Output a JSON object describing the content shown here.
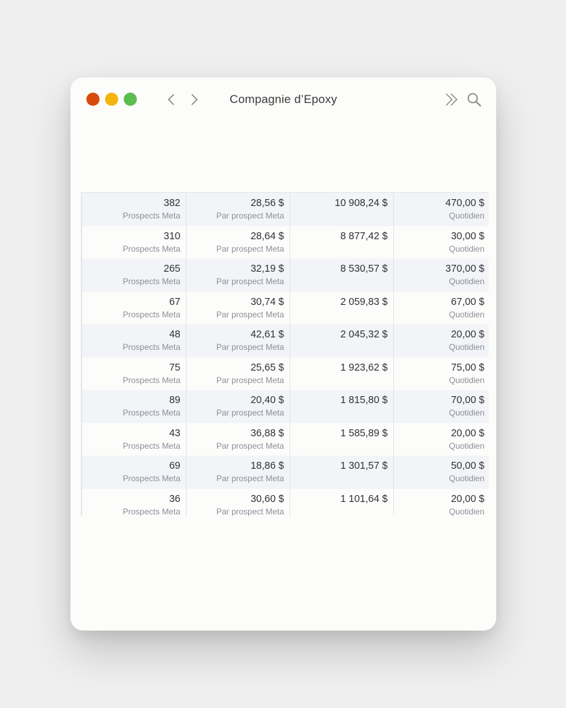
{
  "window": {
    "title": "Compagnie d’Epoxy"
  },
  "colors": {
    "close": "#d84a0c",
    "minimize": "#f4b50e",
    "maximize": "#5cbd4f"
  },
  "icons": {
    "back": "chevron-left-icon",
    "forward": "chevron-right-icon",
    "expand": "double-chevron-right-icon",
    "search": "search-icon"
  },
  "table": {
    "rows": [
      {
        "prospects": "382",
        "prospects_label": "Prospects Meta",
        "cost": "28,56 $",
        "cost_label": "Par prospect Meta",
        "spend": "10 908,24 $",
        "budget": "470,00 $",
        "budget_label": "Quotidien"
      },
      {
        "prospects": "310",
        "prospects_label": "Prospects Meta",
        "cost": "28,64 $",
        "cost_label": "Par prospect Meta",
        "spend": "8 877,42 $",
        "budget": "30,00 $",
        "budget_label": "Quotidien"
      },
      {
        "prospects": "265",
        "prospects_label": "Prospects Meta",
        "cost": "32,19 $",
        "cost_label": "Par prospect Meta",
        "spend": "8 530,57 $",
        "budget": "370,00 $",
        "budget_label": "Quotidien"
      },
      {
        "prospects": "67",
        "prospects_label": "Prospects Meta",
        "cost": "30,74 $",
        "cost_label": "Par prospect Meta",
        "spend": "2 059,83 $",
        "budget": "67,00 $",
        "budget_label": "Quotidien"
      },
      {
        "prospects": "48",
        "prospects_label": "Prospects Meta",
        "cost": "42,61 $",
        "cost_label": "Par prospect Meta",
        "spend": "2 045,32 $",
        "budget": "20,00 $",
        "budget_label": "Quotidien"
      },
      {
        "prospects": "75",
        "prospects_label": "Prospects Meta",
        "cost": "25,65 $",
        "cost_label": "Par prospect Meta",
        "spend": "1 923,62 $",
        "budget": "75,00 $",
        "budget_label": "Quotidien"
      },
      {
        "prospects": "89",
        "prospects_label": "Prospects Meta",
        "cost": "20,40 $",
        "cost_label": "Par prospect Meta",
        "spend": "1 815,80 $",
        "budget": "70,00 $",
        "budget_label": "Quotidien"
      },
      {
        "prospects": "43",
        "prospects_label": "Prospects Meta",
        "cost": "36,88 $",
        "cost_label": "Par prospect Meta",
        "spend": "1 585,89 $",
        "budget": "20,00 $",
        "budget_label": "Quotidien"
      },
      {
        "prospects": "69",
        "prospects_label": "Prospects Meta",
        "cost": "18,86 $",
        "cost_label": "Par prospect Meta",
        "spend": "1 301,57 $",
        "budget": "50,00 $",
        "budget_label": "Quotidien"
      },
      {
        "prospects": "36",
        "prospects_label": "Prospects Meta",
        "cost": "30,60 $",
        "cost_label": "Par prospect Meta",
        "spend": "1 101,64 $",
        "budget": "20,00 $",
        "budget_label": "Quotidien"
      }
    ]
  }
}
